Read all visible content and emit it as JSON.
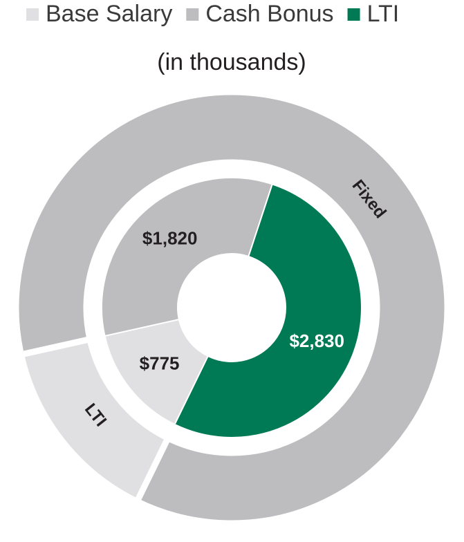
{
  "chart_data": {
    "type": "nested-donut",
    "subtitle": "(in thousands)",
    "inner": {
      "categories": [
        "Base Salary",
        "Cash Bonus",
        "LTI"
      ],
      "values": [
        775,
        1820,
        2830
      ],
      "value_labels": [
        "$775",
        "$1,820",
        "$2,830"
      ],
      "colors": [
        "#e0e0e2",
        "#bdbdbf",
        "#007a55"
      ],
      "label_colors": [
        "#231f20",
        "#231f20",
        "#ffffff"
      ]
    },
    "outer": {
      "categories": [
        "LTI",
        "Fixed"
      ],
      "values": [
        775,
        4650
      ],
      "colors": [
        "#e0e0e2",
        "#bdbdbf"
      ]
    }
  }
}
